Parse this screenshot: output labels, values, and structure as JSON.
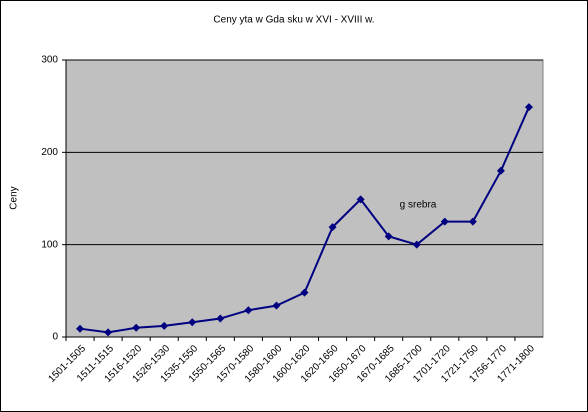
{
  "chart_data": {
    "type": "line",
    "title": "Ceny   yta w Gda   sku w XVI - XVIII w.",
    "y_label": "Ceny",
    "annotation": "g srebra",
    "categories": [
      "1501-1505",
      "1511-1515",
      "1516-1520",
      "1526-1530",
      "1535-1550",
      "1550-1565",
      "1570-1580",
      "1580-1600",
      "1600-1620",
      "1620-1650",
      "1650-1670",
      "1670-1685",
      "1685-1700",
      "1701-1720",
      "1721-1750",
      "1756-1770",
      "1771-1800"
    ],
    "series": [
      {
        "color": "#000080",
        "values": [
          9,
          5,
          10,
          12,
          16,
          20,
          29,
          34,
          48,
          119,
          149,
          109,
          100,
          125,
          125,
          180,
          249
        ]
      }
    ],
    "ylim": [
      0,
      300
    ],
    "yticks": [
      0,
      100,
      200,
      300
    ],
    "grid": true,
    "plot_background": "#c0c0c0"
  }
}
